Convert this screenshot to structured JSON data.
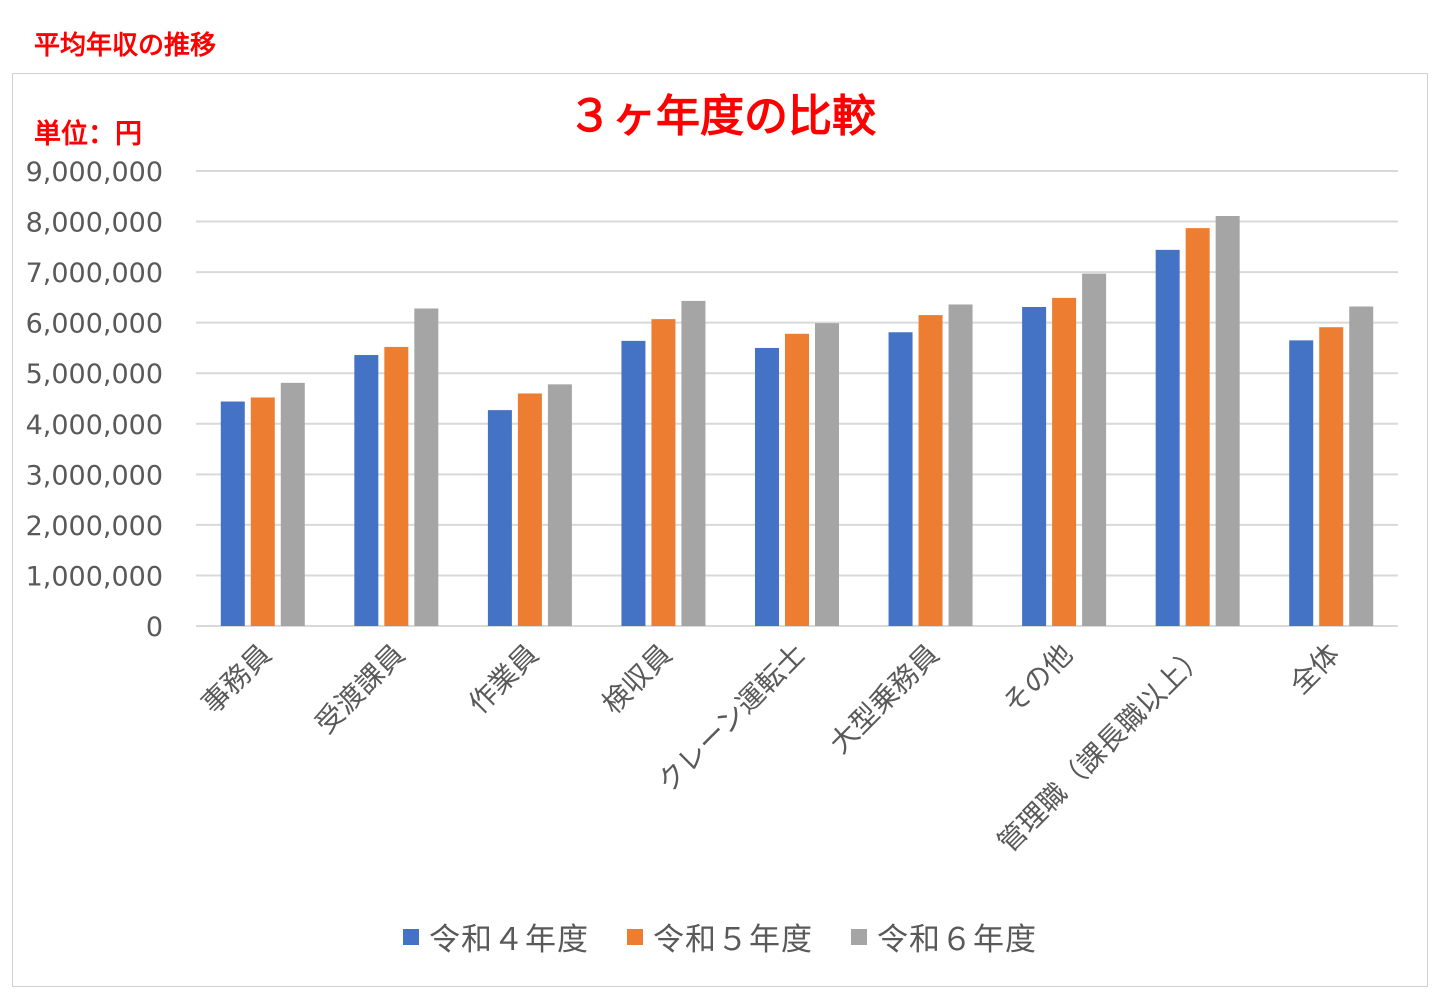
{
  "page": {
    "heading": "平均年収の推移"
  },
  "chart_data": {
    "type": "bar",
    "title": "３ヶ年度の比較",
    "unit_label": "単位：円",
    "xlabel": "",
    "ylabel": "",
    "ylim": [
      0,
      9000000
    ],
    "ytick_step": 1000000,
    "yticks": [
      "0",
      "1,000,000",
      "2,000,000",
      "3,000,000",
      "4,000,000",
      "5,000,000",
      "6,000,000",
      "7,000,000",
      "8,000,000",
      "9,000,000"
    ],
    "grid": true,
    "legend_position": "bottom",
    "categories": [
      "事務員",
      "受渡課員",
      "作業員",
      "検収員",
      "クレーン運転士",
      "大型乗務員",
      "その他",
      "管理職（課長職以上）",
      "全体"
    ],
    "series": [
      {
        "name": "令和４年度",
        "color": "#4472c4",
        "values": [
          4440000,
          5360000,
          4270000,
          5640000,
          5500000,
          5810000,
          6310000,
          7440000,
          5650000
        ]
      },
      {
        "name": "令和５年度",
        "color": "#ed7d31",
        "values": [
          4520000,
          5520000,
          4600000,
          6070000,
          5780000,
          6150000,
          6490000,
          7870000,
          5910000
        ]
      },
      {
        "name": "令和６年度",
        "color": "#a5a5a5",
        "values": [
          4810000,
          6280000,
          4780000,
          6430000,
          5990000,
          6360000,
          6970000,
          8110000,
          6320000
        ]
      }
    ],
    "colors": {
      "title": "#ff0000",
      "axis_text": "#595959",
      "grid": "#d9d9d9"
    }
  }
}
